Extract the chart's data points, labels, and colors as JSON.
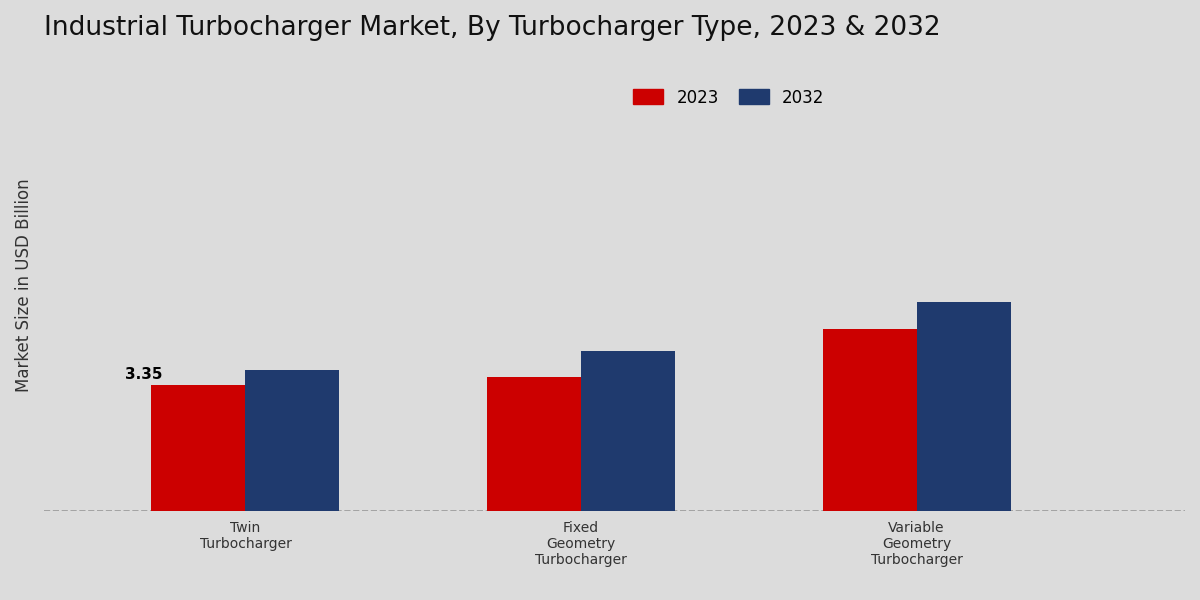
{
  "title": "Industrial Turbocharger Market, By Turbocharger Type, 2023 & 2032",
  "ylabel": "Market Size in USD Billion",
  "categories": [
    "Twin\nTurbocharger",
    "Fixed\nGeometry\nTurbocharger",
    "Variable\nGeometry\nTurbocharger"
  ],
  "values_2023": [
    3.35,
    3.55,
    4.85
  ],
  "values_2032": [
    3.75,
    4.25,
    5.55
  ],
  "color_2023": "#cc0000",
  "color_2032": "#1f3a6e",
  "annotation_value": "3.35",
  "background_color": "#dcdcdc",
  "bar_width": 0.28,
  "ylim": [
    0,
    12
  ],
  "legend_labels": [
    "2023",
    "2032"
  ],
  "title_fontsize": 19,
  "axis_label_fontsize": 12,
  "tick_label_fontsize": 10,
  "legend_fontsize": 12,
  "footer_color": "#cc0000",
  "dashed_line_y": 0,
  "dashed_line_color": "#999999"
}
